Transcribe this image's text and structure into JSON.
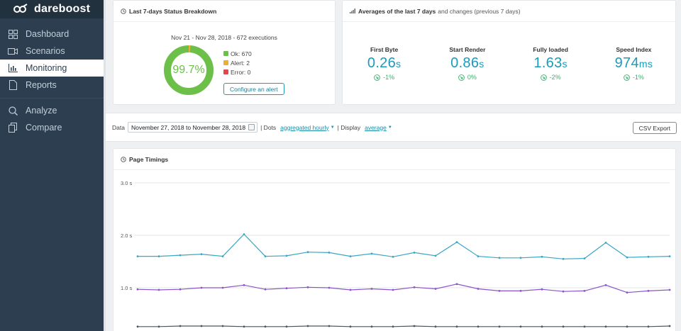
{
  "brand": {
    "name": "dareboost"
  },
  "sidebar": {
    "items": [
      {
        "label": "Dashboard",
        "icon": "dashboard-icon"
      },
      {
        "label": "Scenarios",
        "icon": "video-camera-icon"
      },
      {
        "label": "Monitoring",
        "icon": "bar-chart-icon",
        "active": true
      },
      {
        "label": "Reports",
        "icon": "document-icon"
      },
      {
        "label": "Analyze",
        "icon": "search-icon"
      },
      {
        "label": "Compare",
        "icon": "copy-icon"
      }
    ]
  },
  "status": {
    "title": "Last 7-days Status Breakdown",
    "range": "Nov 21 - Nov 28, 2018 - 672 executions",
    "percent": "99.7%",
    "legend": [
      {
        "label": "Ok: 670",
        "color": "#6cc04a",
        "count": 670
      },
      {
        "label": "Alert: 2",
        "color": "#f0ad2e",
        "count": 2
      },
      {
        "label": "Error: 0",
        "color": "#e0494c",
        "count": 0
      }
    ],
    "alert_button": "Configure an alert"
  },
  "averages": {
    "title": "Averages of the last 7 days",
    "subtitle": "and changes (previous 7 days)",
    "metrics": [
      {
        "label": "First Byte",
        "value": "0.26",
        "unit": "s",
        "change": "-1%"
      },
      {
        "label": "Start Render",
        "value": "0.86",
        "unit": "s",
        "change": "0%"
      },
      {
        "label": "Fully loaded",
        "value": "1.63",
        "unit": "s",
        "change": "-2%"
      },
      {
        "label": "Speed Index",
        "value": "974",
        "unit": "ms",
        "change": "-1%"
      }
    ]
  },
  "filters": {
    "data_label": "Data",
    "date_range": "November 27, 2018 to November 28, 2018",
    "dots_label": "| Dots",
    "dots_value": "aggregated hourly",
    "display_label": "| Display",
    "display_value": "average",
    "csv_button": "CSV Export"
  },
  "timings": {
    "title": "Page Timings"
  },
  "chart_data": {
    "type": "line",
    "title": "Page Timings",
    "y_tick_labels": [
      "3.0 s",
      "2.0 s",
      "1.0 s"
    ],
    "ylim": [
      0,
      3
    ],
    "grid": true,
    "x": [
      0,
      1,
      2,
      3,
      4,
      5,
      6,
      7,
      8,
      9,
      10,
      11,
      12,
      13,
      14,
      15,
      16,
      17,
      18,
      19,
      20,
      21,
      22,
      23,
      24,
      25
    ],
    "series": [
      {
        "color": "#3aa7c4",
        "values": [
          1.6,
          1.6,
          1.62,
          1.64,
          1.6,
          2.02,
          1.6,
          1.61,
          1.68,
          1.67,
          1.6,
          1.65,
          1.59,
          1.67,
          1.61,
          1.87,
          1.6,
          1.57,
          1.57,
          1.59,
          1.55,
          1.56,
          1.86,
          1.58,
          1.59,
          1.6
        ]
      },
      {
        "color": "#8d54c9",
        "values": [
          0.97,
          0.96,
          0.97,
          1.0,
          1.0,
          1.05,
          0.97,
          0.99,
          1.01,
          1.0,
          0.96,
          0.98,
          0.96,
          1.01,
          0.98,
          1.07,
          0.98,
          0.94,
          0.94,
          0.97,
          0.93,
          0.94,
          1.05,
          0.91,
          0.94,
          0.96
        ]
      },
      {
        "color": "#4a5560",
        "values": [
          0.26,
          0.26,
          0.27,
          0.27,
          0.27,
          0.26,
          0.26,
          0.26,
          0.27,
          0.27,
          0.26,
          0.26,
          0.26,
          0.27,
          0.26,
          0.26,
          0.26,
          0.26,
          0.26,
          0.26,
          0.26,
          0.26,
          0.26,
          0.26,
          0.26,
          0.27
        ]
      }
    ]
  }
}
